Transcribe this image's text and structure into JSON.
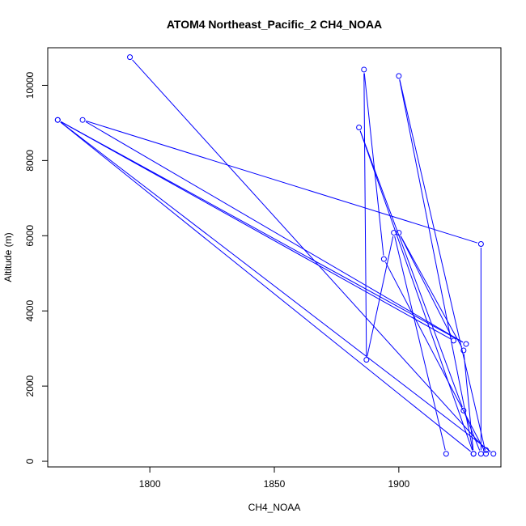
{
  "chart_data": {
    "type": "line",
    "title": "ATOM4 Northeast_Pacific_2 CH4_NOAA",
    "xlabel": "CH4_NOAA",
    "ylabel": "Altitude (m)",
    "xlim": [
      1759,
      1941
    ],
    "ylim": [
      -150,
      11000
    ],
    "x_ticks": [
      1800,
      1850,
      1900
    ],
    "y_ticks": [
      0,
      2000,
      4000,
      6000,
      8000,
      10000
    ],
    "grid": false,
    "legend": "none",
    "series": [
      {
        "color": "#0000ff",
        "marker": "open-circle",
        "points": [
          {
            "x": 1792.0,
            "y": 10750
          },
          {
            "x": 1935.0,
            "y": 300
          },
          {
            "x": 1938.0,
            "y": 200
          },
          {
            "x": 1763.0,
            "y": 9080
          },
          {
            "x": 1927.0,
            "y": 3120
          },
          {
            "x": 1773.0,
            "y": 9080
          },
          {
            "x": 1933.0,
            "y": 5780
          },
          {
            "x": 1933.0,
            "y": 200
          },
          {
            "x": 1926.0,
            "y": 1350
          },
          {
            "x": 1884.0,
            "y": 8880
          },
          {
            "x": 1930.0,
            "y": 200
          },
          {
            "x": 1926.0,
            "y": 2950
          },
          {
            "x": 1900.0,
            "y": 6080
          },
          {
            "x": 1922.0,
            "y": 3210
          },
          {
            "x": 1763.0,
            "y": 9080
          },
          {
            "x": 1930.0,
            "y": 200
          },
          {
            "x": 1900.0,
            "y": 10250
          },
          {
            "x": 1935.0,
            "y": 200
          },
          {
            "x": 1894.0,
            "y": 5380
          },
          {
            "x": 1886.0,
            "y": 10420
          },
          {
            "x": 1887.0,
            "y": 2700
          },
          {
            "x": 1898.0,
            "y": 6080
          },
          {
            "x": 1919.0,
            "y": 200
          }
        ]
      }
    ]
  }
}
